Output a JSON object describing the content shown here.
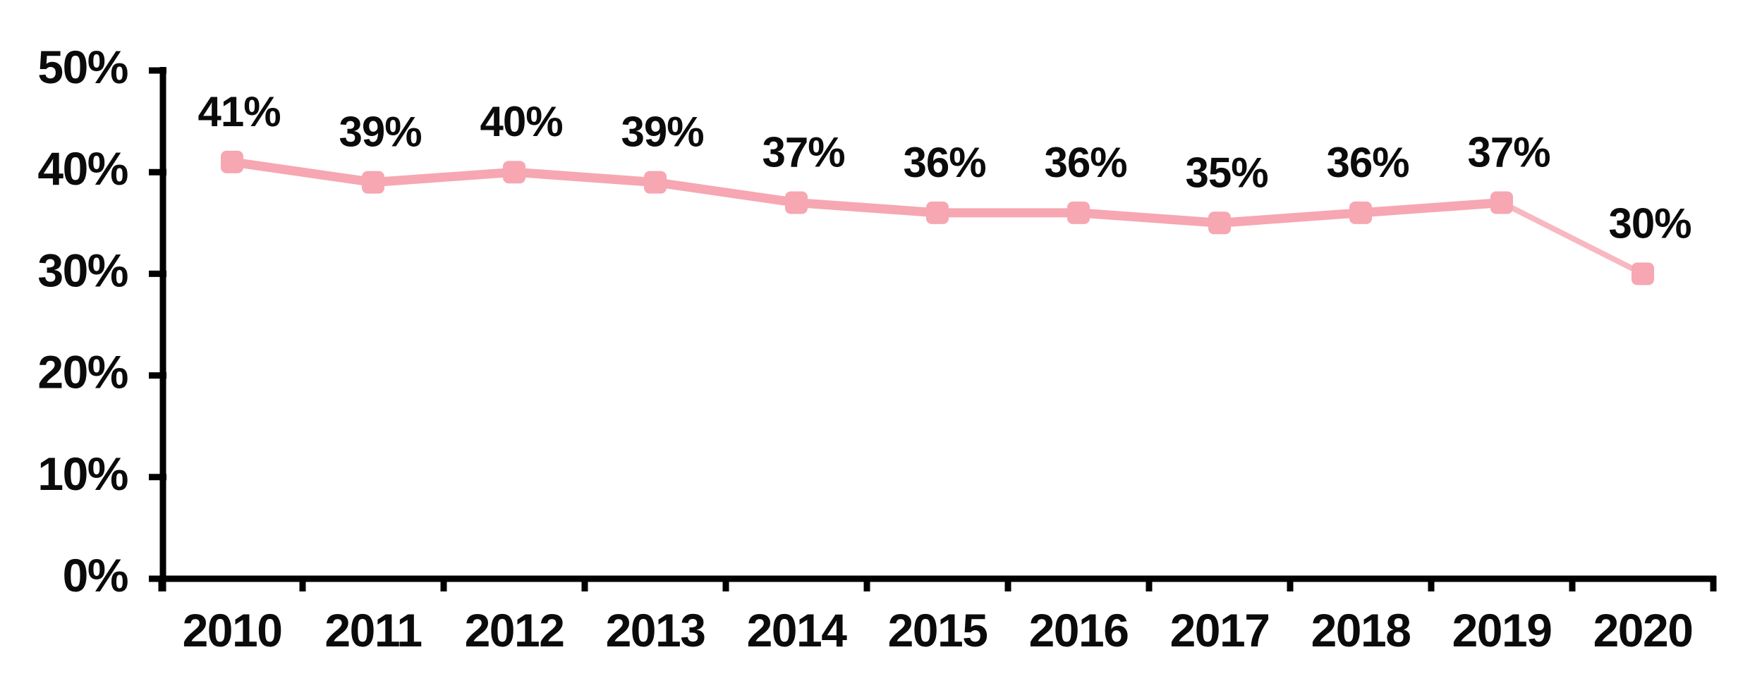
{
  "chart_data": {
    "type": "line",
    "title": "",
    "xlabel": "",
    "ylabel": "",
    "categories": [
      "2010",
      "2011",
      "2012",
      "2013",
      "2014",
      "2015",
      "2016",
      "2017",
      "2018",
      "2019",
      "2020"
    ],
    "series": [
      {
        "name": "percentage",
        "values": [
          41,
          39,
          40,
          39,
          37,
          36,
          36,
          35,
          36,
          37,
          30
        ]
      }
    ],
    "data_labels": [
      "41%",
      "39%",
      "40%",
      "39%",
      "37%",
      "36%",
      "36%",
      "35%",
      "36%",
      "37%",
      "30%"
    ],
    "ylim": [
      0,
      50
    ],
    "ytick_values": [
      0,
      10,
      20,
      30,
      40,
      50
    ],
    "ytick_labels": [
      "0%",
      "10%",
      "20%",
      "30%",
      "40%",
      "50%"
    ],
    "grid": "off",
    "legend": "none",
    "marker_shape": "rounded-square",
    "colors": {
      "line": "#f6a7b2",
      "marker": "#f6a7b2",
      "last_segment": "#f8b8c1",
      "axis": "#000000",
      "text": "#0b0b0b",
      "background": "#ffffff"
    }
  }
}
